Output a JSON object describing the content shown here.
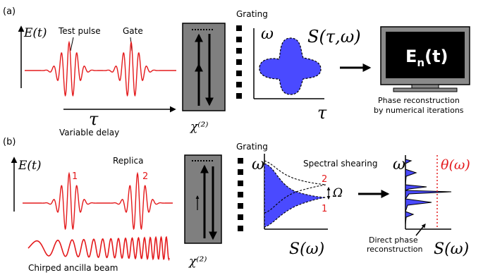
{
  "panel_a": {
    "label": "(a)",
    "field_symbol": "E(t)",
    "test_pulse_label": "Test pulse",
    "gate_label": "Gate",
    "delay_symbol": "τ",
    "delay_caption": "Variable delay",
    "crystal_symbol": "χ⁽²⁾",
    "grating_label": "Grating",
    "freq_axis": "ω",
    "time_axis": "τ",
    "signal_label": "S(τ,ω)",
    "monitor_text": "E",
    "monitor_subscript": "n",
    "monitor_text_tail": "(t)",
    "caption_line1": "Phase reconstruction",
    "caption_line2": "by numerical iterations"
  },
  "panel_b": {
    "label": "(b)",
    "field_symbol": "E(t)",
    "replica_label": "Replica",
    "replica_1": "1",
    "replica_2": "2",
    "ancilla_caption": "Chirped ancilla beam",
    "crystal_symbol": "χ⁽²⁾",
    "grating_label": "Grating",
    "freq_axis": "ω",
    "spectrum_axis": "S(ω)",
    "shear_label": "Spectral shearing",
    "shear_2": "2",
    "shear_1": "1",
    "shear_symbol": "Ω",
    "freq_axis_2": "ω",
    "phase_label": "θ(ω)",
    "direct_line1": "Direct phase",
    "direct_line2": "reconstruction",
    "spectrum_axis_2": "S(ω)"
  },
  "colors": {
    "pulse": "#e41a1c",
    "fill": "#4a4aff",
    "crystal": "#7f7f7f",
    "phase": "#e41a1c"
  }
}
